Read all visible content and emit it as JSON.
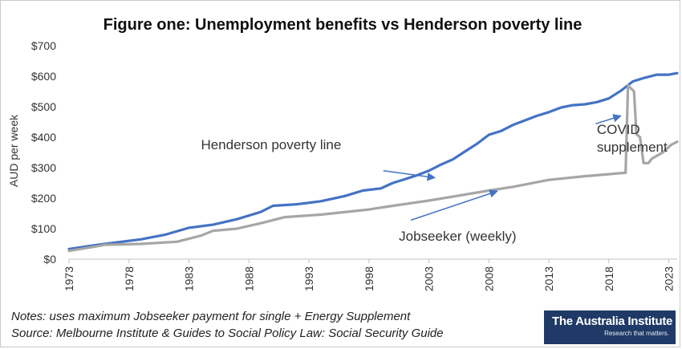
{
  "chart_data": {
    "type": "line",
    "title": "Figure one: Unemployment benefits vs Henderson poverty line",
    "ylabel": "AUD per week",
    "xlabel": "",
    "xlim": [
      1973,
      2023.7
    ],
    "ylim": [
      0,
      700
    ],
    "yticks": [
      0,
      100,
      200,
      300,
      400,
      500,
      600,
      700
    ],
    "ytick_labels": [
      "$0",
      "$100",
      "$200",
      "$300",
      "$400",
      "$500",
      "$600",
      "$700"
    ],
    "xticks": [
      1973,
      1978,
      1983,
      1988,
      1993,
      1998,
      2003,
      2008,
      2013,
      2018,
      2023
    ],
    "xtick_labels": [
      "1973",
      "1978",
      "1983",
      "1988",
      "1993",
      "1998",
      "2003",
      "2008",
      "2013",
      "2018",
      "2023"
    ],
    "grid": false,
    "series": [
      {
        "name": "Henderson poverty line",
        "color": "#4472c4",
        "points": [
          [
            1973,
            33
          ],
          [
            1975,
            45
          ],
          [
            1977,
            55
          ],
          [
            1979,
            65
          ],
          [
            1981,
            80
          ],
          [
            1983,
            103
          ],
          [
            1985,
            113
          ],
          [
            1987,
            131
          ],
          [
            1989,
            155
          ],
          [
            1990,
            175
          ],
          [
            1992,
            180
          ],
          [
            1994,
            190
          ],
          [
            1996,
            207
          ],
          [
            1997.5,
            225
          ],
          [
            1999,
            232
          ],
          [
            2000,
            250
          ],
          [
            2001,
            262
          ],
          [
            2002,
            275
          ],
          [
            2003,
            290
          ],
          [
            2004,
            310
          ],
          [
            2005,
            327
          ],
          [
            2006,
            353
          ],
          [
            2007,
            378
          ],
          [
            2008,
            408
          ],
          [
            2009,
            420
          ],
          [
            2010,
            440
          ],
          [
            2011,
            455
          ],
          [
            2012,
            470
          ],
          [
            2013,
            482
          ],
          [
            2014,
            497
          ],
          [
            2015,
            505
          ],
          [
            2016,
            508
          ],
          [
            2017,
            515
          ],
          [
            2018,
            527
          ],
          [
            2019,
            552
          ],
          [
            2020,
            583
          ],
          [
            2021,
            595
          ],
          [
            2022,
            605
          ],
          [
            2023,
            605
          ],
          [
            2023.7,
            610
          ]
        ]
      },
      {
        "name": "Jobseeker (weekly)",
        "color": "#a6a6a6",
        "points": [
          [
            1973,
            27
          ],
          [
            1975,
            40
          ],
          [
            1976,
            47
          ],
          [
            1979,
            50
          ],
          [
            1982,
            57
          ],
          [
            1984,
            77
          ],
          [
            1985,
            93
          ],
          [
            1987,
            100
          ],
          [
            1989,
            118
          ],
          [
            1991,
            138
          ],
          [
            1994,
            146
          ],
          [
            1998,
            163
          ],
          [
            2000,
            175
          ],
          [
            2003,
            192
          ],
          [
            2005,
            205
          ],
          [
            2008,
            225
          ],
          [
            2010,
            237
          ],
          [
            2013,
            260
          ],
          [
            2016,
            272
          ],
          [
            2019,
            282
          ],
          [
            2019.4,
            283
          ],
          [
            2019.6,
            570
          ],
          [
            2020.1,
            550
          ],
          [
            2020.3,
            410
          ],
          [
            2020.6,
            400
          ],
          [
            2020.9,
            315
          ],
          [
            2021.3,
            315
          ],
          [
            2021.6,
            330
          ],
          [
            2022.5,
            350
          ],
          [
            2023.2,
            375
          ],
          [
            2023.7,
            385
          ]
        ]
      }
    ],
    "annotations": [
      {
        "lines": [
          "Henderson poverty line"
        ],
        "text_at": [
          1984.0,
          360
        ],
        "arrow_from": [
          1999.2,
          290
        ],
        "arrow_to": [
          2003.5,
          267
        ]
      },
      {
        "lines": [
          "Jobseeker (weekly)"
        ],
        "text_at": [
          2000.5,
          60
        ],
        "arrow_from": [
          2001.5,
          128
        ],
        "arrow_to": [
          2008.7,
          223
        ]
      },
      {
        "lines": [
          "COVID",
          "supplement"
        ],
        "text_at": [
          2017.0,
          410
        ],
        "arrow_from": [
          2016.9,
          444
        ],
        "arrow_to": [
          2019.0,
          470
        ]
      }
    ],
    "legend": "none"
  },
  "notes": {
    "line1": "Notes: uses maximum Jobseeker payment for single + Energy Supplement",
    "line2": "Source: Melbourne Institute & Guides to Social Policy Law: Social Security Guide"
  },
  "logo": {
    "name": "The Australia Institute",
    "tagline": "Research that matters."
  }
}
